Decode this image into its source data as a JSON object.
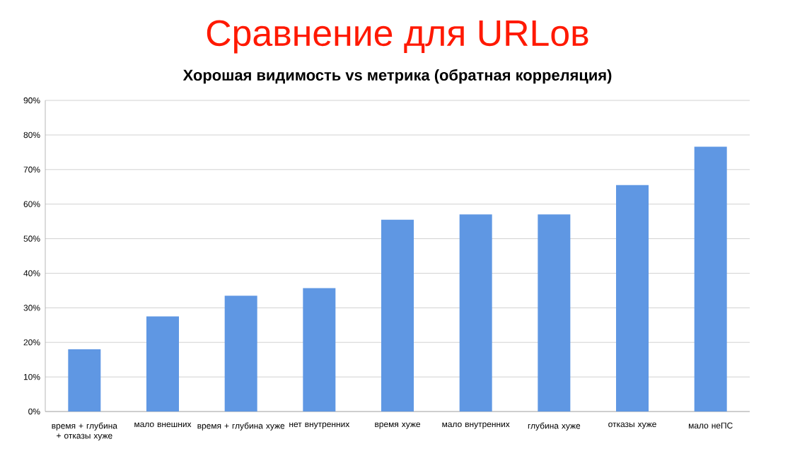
{
  "chart_data": {
    "type": "bar",
    "title": "Сравнение для URLов",
    "subtitle": "Хорошая видимость vs метрика (обратная корреляция)",
    "categories": [
      "время + глубина + отказы хуже",
      "мало внешних",
      "время + глубина хуже",
      "нет внутренних",
      "время хуже",
      "мало внутренних",
      "глубина хуже",
      "отказы хуже",
      "мало неПС"
    ],
    "values": [
      18,
      27.5,
      33.5,
      35.7,
      55.5,
      57,
      57,
      65.5,
      76.6
    ],
    "color": "#5f97e3",
    "ylim": [
      0,
      90
    ],
    "yticks": [
      {
        "value": 0,
        "label": "0%"
      },
      {
        "value": 10,
        "label": "10%"
      },
      {
        "value": 20,
        "label": "20%"
      },
      {
        "value": 30,
        "label": "30%"
      },
      {
        "value": 40,
        "label": "40%"
      },
      {
        "value": 50,
        "label": "50%"
      },
      {
        "value": 60,
        "label": "60%"
      },
      {
        "value": 70,
        "label": "70%"
      },
      {
        "value": 80,
        "label": "80%"
      },
      {
        "value": 90,
        "label": "90%"
      }
    ],
    "grid": "y"
  }
}
